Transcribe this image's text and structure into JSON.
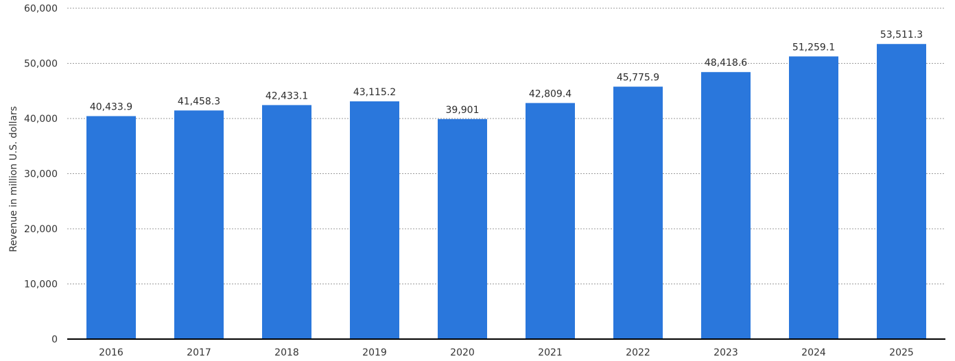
{
  "chart_data": {
    "type": "bar",
    "categories": [
      "2016",
      "2017",
      "2018",
      "2019",
      "2020",
      "2021",
      "2022",
      "2023",
      "2024",
      "2025"
    ],
    "values": [
      40433.9,
      41458.3,
      42433.1,
      43115.2,
      39901,
      42809.4,
      45775.9,
      48418.6,
      51259.1,
      53511.3
    ],
    "value_labels": [
      "40,433.9",
      "41,458.3",
      "42,433.1",
      "43,115.2",
      "39,901",
      "42,809.4",
      "45,775.9",
      "48,418.6",
      "51,259.1",
      "53,511.3"
    ],
    "title": "",
    "xlabel": "",
    "ylabel": "Revenue in million U.S. dollars",
    "ylim": [
      0,
      60000
    ],
    "yticks": [
      0,
      10000,
      20000,
      30000,
      40000,
      50000,
      60000
    ],
    "ytick_labels": [
      "0",
      "10,000",
      "20,000",
      "30,000",
      "40,000",
      "50,000",
      "60,000"
    ],
    "grid": true,
    "bar_color": "#2a77dc"
  }
}
